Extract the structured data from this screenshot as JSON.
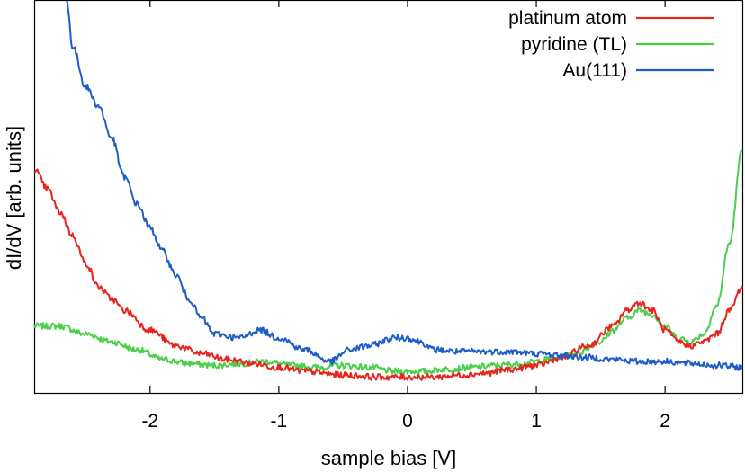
{
  "chart_data": {
    "type": "line",
    "title": "",
    "xlabel": "sample bias [V]",
    "ylabel": "dI/dV [arb. units]",
    "xlim": [
      -2.9,
      2.6
    ],
    "ylim": [
      0,
      100
    ],
    "x_ticks": [
      -2,
      -1,
      0,
      1,
      2
    ],
    "x_tick_labels": [
      "-2",
      "-1",
      "0",
      "1",
      "2"
    ],
    "y_tick_labels_shown": false,
    "grid": false,
    "legend_position": "top-right",
    "series": [
      {
        "name": "platinum atom",
        "color": "#e8241c",
        "points": [
          [
            -2.9,
            57
          ],
          [
            -2.8,
            52
          ],
          [
            -2.7,
            46
          ],
          [
            -2.6,
            40
          ],
          [
            -2.5,
            33
          ],
          [
            -2.4,
            27
          ],
          [
            -2.3,
            24
          ],
          [
            -2.2,
            21
          ],
          [
            -2.0,
            16
          ],
          [
            -1.8,
            12
          ],
          [
            -1.6,
            10
          ],
          [
            -1.4,
            8.5
          ],
          [
            -1.2,
            7.5
          ],
          [
            -1.0,
            6.5
          ],
          [
            -0.8,
            5.5
          ],
          [
            -0.5,
            4.5
          ],
          [
            -0.2,
            4
          ],
          [
            0.0,
            4
          ],
          [
            0.2,
            4
          ],
          [
            0.4,
            4.5
          ],
          [
            0.6,
            5
          ],
          [
            0.8,
            6
          ],
          [
            1.0,
            7
          ],
          [
            1.2,
            9
          ],
          [
            1.4,
            12
          ],
          [
            1.6,
            17
          ],
          [
            1.7,
            21
          ],
          [
            1.8,
            23
          ],
          [
            1.9,
            21
          ],
          [
            2.0,
            16
          ],
          [
            2.1,
            13
          ],
          [
            2.2,
            12
          ],
          [
            2.3,
            13
          ],
          [
            2.4,
            15
          ],
          [
            2.5,
            21
          ],
          [
            2.6,
            27
          ]
        ]
      },
      {
        "name": "pyridine (TL)",
        "color": "#49cf49",
        "points": [
          [
            -2.9,
            17
          ],
          [
            -2.7,
            17
          ],
          [
            -2.5,
            15
          ],
          [
            -2.3,
            13
          ],
          [
            -2.1,
            11
          ],
          [
            -1.9,
            8.5
          ],
          [
            -1.7,
            7.5
          ],
          [
            -1.5,
            7
          ],
          [
            -1.3,
            7.5
          ],
          [
            -1.1,
            8
          ],
          [
            -0.9,
            7
          ],
          [
            -0.7,
            6.5
          ],
          [
            -0.5,
            7
          ],
          [
            -0.3,
            6.5
          ],
          [
            -0.1,
            5.5
          ],
          [
            0.1,
            5.5
          ],
          [
            0.3,
            6
          ],
          [
            0.5,
            6.5
          ],
          [
            0.7,
            7
          ],
          [
            0.9,
            7.5
          ],
          [
            1.1,
            8.5
          ],
          [
            1.3,
            10
          ],
          [
            1.5,
            13
          ],
          [
            1.6,
            16
          ],
          [
            1.7,
            19
          ],
          [
            1.8,
            21
          ],
          [
            1.9,
            20
          ],
          [
            2.0,
            17
          ],
          [
            2.1,
            14
          ],
          [
            2.2,
            13
          ],
          [
            2.3,
            15
          ],
          [
            2.4,
            22
          ],
          [
            2.5,
            38
          ],
          [
            2.6,
            62
          ]
        ]
      },
      {
        "name": "Au(111)",
        "color": "#1f5ec6",
        "points": [
          [
            -2.65,
            100
          ],
          [
            -2.6,
            88
          ],
          [
            -2.5,
            78
          ],
          [
            -2.4,
            73
          ],
          [
            -2.3,
            65
          ],
          [
            -2.2,
            55
          ],
          [
            -2.1,
            48
          ],
          [
            -2.0,
            42
          ],
          [
            -1.9,
            36
          ],
          [
            -1.8,
            30
          ],
          [
            -1.7,
            24
          ],
          [
            -1.6,
            19
          ],
          [
            -1.5,
            15
          ],
          [
            -1.3,
            14
          ],
          [
            -1.15,
            16
          ],
          [
            -1.0,
            14
          ],
          [
            -0.8,
            11
          ],
          [
            -0.6,
            8
          ],
          [
            -0.45,
            11
          ],
          [
            -0.3,
            12
          ],
          [
            -0.1,
            14
          ],
          [
            0.0,
            14
          ],
          [
            0.1,
            13
          ],
          [
            0.2,
            11
          ],
          [
            0.4,
            10.5
          ],
          [
            0.6,
            10.5
          ],
          [
            0.8,
            10.5
          ],
          [
            1.0,
            10
          ],
          [
            1.2,
            9.5
          ],
          [
            1.4,
            9
          ],
          [
            1.6,
            8.5
          ],
          [
            1.8,
            8
          ],
          [
            2.0,
            8
          ],
          [
            2.2,
            7.5
          ],
          [
            2.4,
            7
          ],
          [
            2.6,
            6.5
          ]
        ]
      }
    ]
  }
}
